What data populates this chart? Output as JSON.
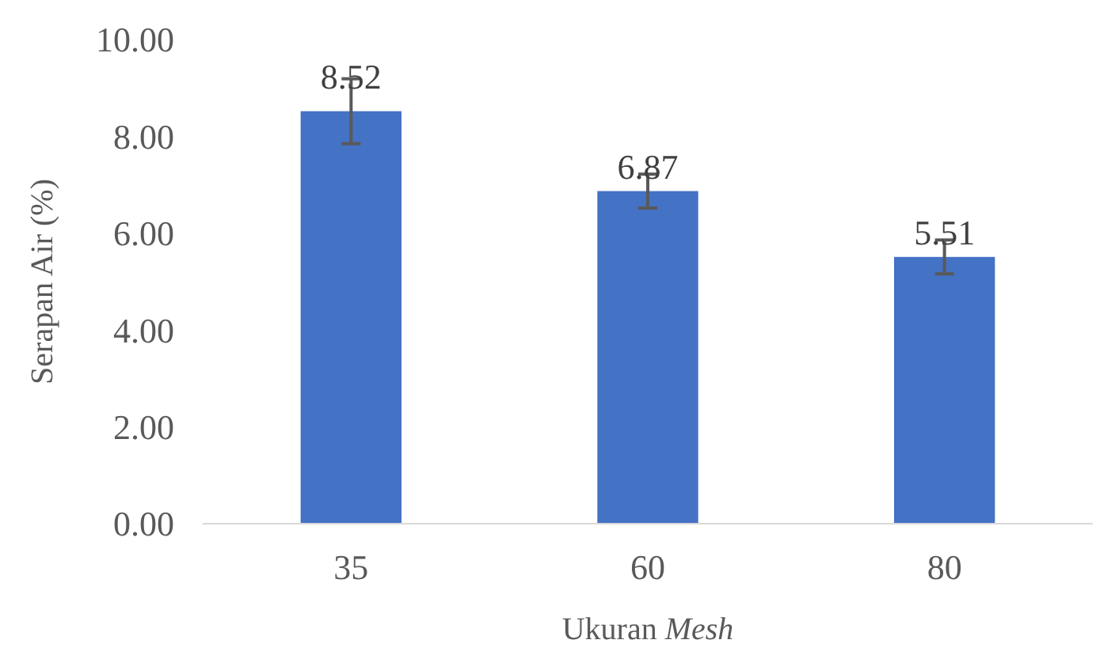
{
  "chart_data": {
    "type": "bar",
    "xlabel": "Ukuran Mesh",
    "ylabel": "Serapan Air (%)",
    "categories": [
      "35",
      "60",
      "80"
    ],
    "values": [
      8.52,
      6.87,
      5.51
    ],
    "errors": [
      0.67,
      0.35,
      0.35
    ],
    "color": "#4472c4",
    "data_labels": true,
    "ylim": [
      0,
      10
    ],
    "yticks": [
      {
        "value": 0,
        "label": "0.00"
      },
      {
        "value": 2,
        "label": "2.00"
      },
      {
        "value": 4,
        "label": "4.00"
      },
      {
        "value": 6,
        "label": "6.00"
      },
      {
        "value": 8,
        "label": "8.00"
      },
      {
        "value": 10,
        "label": "10.00"
      }
    ]
  }
}
